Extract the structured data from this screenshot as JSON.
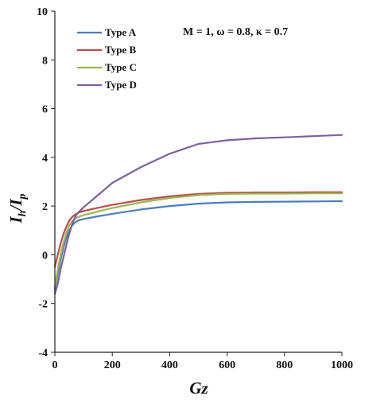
{
  "chart_data": {
    "type": "line",
    "xlabel": "Gz",
    "ylabel": "I",
    "ylabel_sub1": "h",
    "ylabel_mid": "/I",
    "ylabel_sub2": "p",
    "xlim": [
      0,
      1000
    ],
    "ylim": [
      -4,
      10
    ],
    "xticks": [
      0,
      200,
      400,
      600,
      800,
      1000
    ],
    "yticks": [
      -4,
      -2,
      0,
      2,
      4,
      6,
      8,
      10
    ],
    "grid": false,
    "legend_position": "top-left",
    "annotation": "M = 1, ω = 0.8, κ = 0.7",
    "series": [
      {
        "name": "Type A",
        "color": "#4a7ebb",
        "x": [
          0,
          10,
          20,
          30,
          40,
          50,
          60,
          70,
          80,
          100,
          150,
          200,
          300,
          400,
          500,
          600,
          700,
          800,
          900,
          1000
        ],
        "y": [
          -1.4,
          -0.8,
          -0.2,
          0.3,
          0.7,
          1.0,
          1.2,
          1.33,
          1.4,
          1.47,
          1.58,
          1.68,
          1.86,
          2.0,
          2.1,
          2.15,
          2.17,
          2.18,
          2.19,
          2.2
        ]
      },
      {
        "name": "Type B",
        "color": "#be4b48",
        "x": [
          0,
          10,
          20,
          30,
          40,
          50,
          60,
          70,
          80,
          100,
          150,
          200,
          300,
          400,
          500,
          600,
          700,
          800,
          900,
          1000
        ],
        "y": [
          -0.5,
          0.0,
          0.45,
          0.85,
          1.15,
          1.4,
          1.55,
          1.65,
          1.72,
          1.8,
          1.93,
          2.05,
          2.25,
          2.4,
          2.5,
          2.55,
          2.56,
          2.56,
          2.57,
          2.57
        ]
      },
      {
        "name": "Type C",
        "color": "#98b954",
        "x": [
          0,
          10,
          20,
          30,
          40,
          50,
          60,
          70,
          80,
          100,
          150,
          200,
          300,
          400,
          500,
          600,
          700,
          800,
          900,
          1000
        ],
        "y": [
          -1.3,
          -0.6,
          0.0,
          0.5,
          0.9,
          1.2,
          1.38,
          1.48,
          1.55,
          1.63,
          1.78,
          1.92,
          2.15,
          2.33,
          2.45,
          2.5,
          2.51,
          2.51,
          2.52,
          2.52
        ]
      },
      {
        "name": "Type D",
        "color": "#7d60a0",
        "x": [
          0,
          10,
          20,
          30,
          40,
          50,
          60,
          70,
          80,
          100,
          150,
          200,
          300,
          400,
          500,
          600,
          700,
          800,
          900,
          1000
        ],
        "y": [
          -1.6,
          -1.2,
          -0.6,
          -0.1,
          0.4,
          0.85,
          1.25,
          1.55,
          1.72,
          1.95,
          2.45,
          2.95,
          3.6,
          4.15,
          4.55,
          4.7,
          4.78,
          4.82,
          4.87,
          4.92
        ]
      }
    ]
  }
}
